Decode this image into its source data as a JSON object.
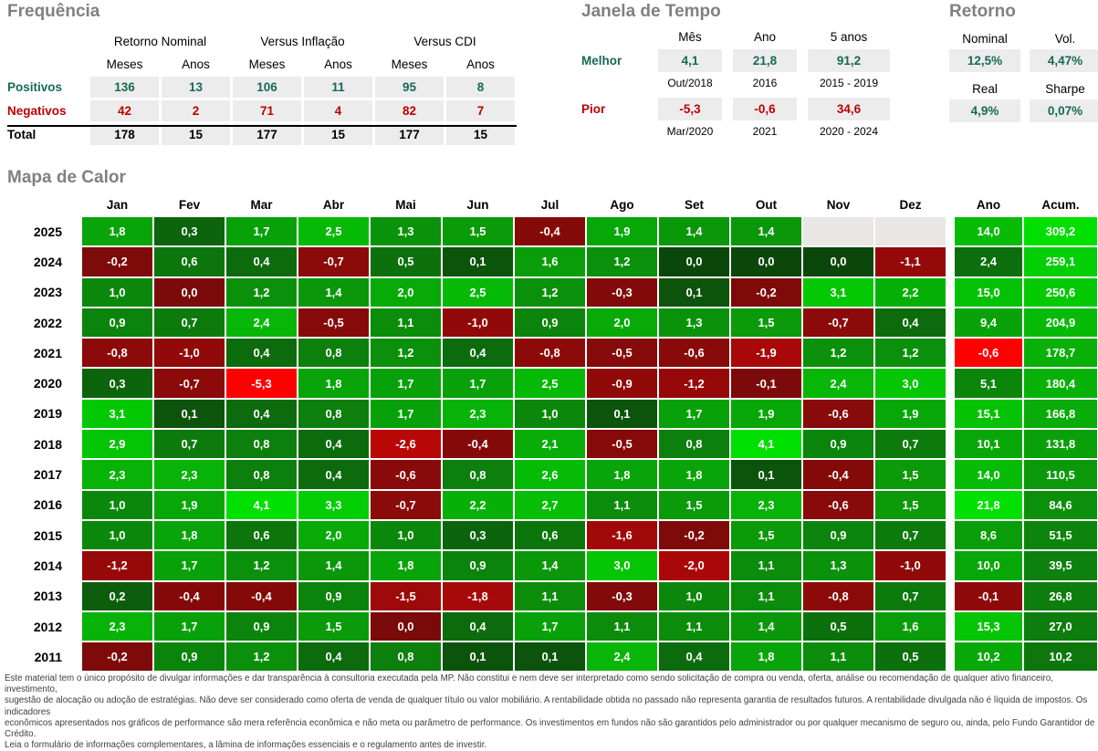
{
  "frequency": {
    "title": "Frequência",
    "group_headers": [
      "Retorno Nominal",
      "Versus Inflação",
      "Versus CDI"
    ],
    "sub_headers": [
      "Meses",
      "Anos",
      "Meses",
      "Anos",
      "Meses",
      "Anos"
    ],
    "rows": [
      {
        "label": "Positivos",
        "tone": "positive",
        "values": [
          "136",
          "13",
          "106",
          "11",
          "95",
          "8"
        ]
      },
      {
        "label": "Negativos",
        "tone": "negative",
        "values": [
          "42",
          "2",
          "71",
          "4",
          "82",
          "7"
        ]
      },
      {
        "label": "Total",
        "tone": "total",
        "values": [
          "178",
          "15",
          "177",
          "15",
          "177",
          "15"
        ]
      }
    ]
  },
  "time_window": {
    "title": "Janela de Tempo",
    "headers": [
      "Mês",
      "Ano",
      "5 anos"
    ],
    "rows": [
      {
        "label": "Melhor",
        "tone": "positive",
        "values": [
          "4,1",
          "21,8",
          "91,2"
        ],
        "periods": [
          "Out/2018",
          "2016",
          "2015 - 2019"
        ]
      },
      {
        "label": "Pior",
        "tone": "negative",
        "values": [
          "-5,3",
          "-0,6",
          "34,6"
        ],
        "periods": [
          "Mar/2020",
          "2021",
          "2020 - 2024"
        ]
      }
    ]
  },
  "returns": {
    "title": "Retorno",
    "pairs": [
      {
        "headers": [
          "Nominal",
          "Vol."
        ],
        "values": [
          "12,5%",
          "4,47%"
        ]
      },
      {
        "headers": [
          "Real",
          "Sharpe"
        ],
        "values": [
          "4,9%",
          "0,07%"
        ]
      }
    ]
  },
  "chart_data": {
    "type": "heatmap",
    "title": "Mapa de Calor",
    "x_labels": [
      "Jan",
      "Fev",
      "Mar",
      "Abr",
      "Mai",
      "Jun",
      "Jul",
      "Ago",
      "Set",
      "Out",
      "Nov",
      "Dez"
    ],
    "summary_labels": [
      "Ano",
      "Acum."
    ],
    "rows": [
      {
        "year": "2025",
        "months": [
          "1,8",
          "0,3",
          "1,7",
          "2,5",
          "1,3",
          "1,5",
          "-0,4",
          "1,9",
          "1,4",
          "1,4",
          null,
          null
        ],
        "ano": "14,0",
        "acum": "309,2"
      },
      {
        "year": "2024",
        "months": [
          "-0,2",
          "0,6",
          "0,4",
          "-0,7",
          "0,5",
          "0,1",
          "1,6",
          "1,2",
          "0,0",
          "0,0",
          "0,0",
          "-1,1"
        ],
        "ano": "2,4",
        "acum": "259,1"
      },
      {
        "year": "2023",
        "months": [
          "1,0",
          "0,0",
          "1,2",
          "1,4",
          "2,0",
          "2,5",
          "1,2",
          "-0,3",
          "0,1",
          "-0,2",
          "3,1",
          "2,2"
        ],
        "ano": "15,0",
        "acum": "250,6"
      },
      {
        "year": "2022",
        "months": [
          "0,9",
          "0,7",
          "2,4",
          "-0,5",
          "1,1",
          "-1,0",
          "0,9",
          "2,0",
          "1,3",
          "1,5",
          "-0,7",
          "0,4"
        ],
        "ano": "9,4",
        "acum": "204,9"
      },
      {
        "year": "2021",
        "months": [
          "-0,8",
          "-1,0",
          "0,4",
          "0,8",
          "1,2",
          "0,4",
          "-0,8",
          "-0,5",
          "-0,6",
          "-1,9",
          "1,2",
          "1,2"
        ],
        "ano": "-0,6",
        "acum": "178,7"
      },
      {
        "year": "2020",
        "months": [
          "0,3",
          "-0,7",
          "-5,3",
          "1,8",
          "1,7",
          "1,7",
          "2,5",
          "-0,9",
          "-1,2",
          "-0,1",
          "2,4",
          "3,0"
        ],
        "ano": "5,1",
        "acum": "180,4"
      },
      {
        "year": "2019",
        "months": [
          "3,1",
          "0,1",
          "0,4",
          "0,8",
          "1,7",
          "2,3",
          "1,0",
          "0,1",
          "1,7",
          "1,9",
          "-0,6",
          "1,9"
        ],
        "ano": "15,1",
        "acum": "166,8"
      },
      {
        "year": "2018",
        "months": [
          "2,9",
          "0,7",
          "0,8",
          "0,4",
          "-2,6",
          "-0,4",
          "2,1",
          "-0,5",
          "0,8",
          "4,1",
          "0,9",
          "0,7"
        ],
        "ano": "10,1",
        "acum": "131,8"
      },
      {
        "year": "2017",
        "months": [
          "2,3",
          "2,3",
          "0,8",
          "0,4",
          "-0,6",
          "0,8",
          "2,6",
          "1,8",
          "1,8",
          "0,1",
          "-0,4",
          "1,5"
        ],
        "ano": "14,0",
        "acum": "110,5"
      },
      {
        "year": "2016",
        "months": [
          "1,0",
          "1,9",
          "4,1",
          "3,3",
          "-0,7",
          "2,2",
          "2,7",
          "1,1",
          "1,5",
          "2,3",
          "-0,6",
          "1,5"
        ],
        "ano": "21,8",
        "acum": "84,6"
      },
      {
        "year": "2015",
        "months": [
          "1,0",
          "1,8",
          "0,6",
          "2,0",
          "1,0",
          "0,3",
          "0,6",
          "-1,6",
          "-0,2",
          "1,5",
          "0,9",
          "0,7"
        ],
        "ano": "8,6",
        "acum": "51,5"
      },
      {
        "year": "2014",
        "months": [
          "-1,2",
          "1,7",
          "1,2",
          "1,4",
          "1,8",
          "0,9",
          "1,4",
          "3,0",
          "-2,0",
          "1,1",
          "1,3",
          "-1,0"
        ],
        "ano": "10,0",
        "acum": "39,5"
      },
      {
        "year": "2013",
        "months": [
          "0,2",
          "-0,4",
          "-0,4",
          "0,9",
          "-1,5",
          "-1,8",
          "1,1",
          "-0,3",
          "1,0",
          "1,1",
          "-0,8",
          "0,7"
        ],
        "ano": "-0,1",
        "acum": "26,8"
      },
      {
        "year": "2012",
        "months": [
          "2,3",
          "1,7",
          "0,9",
          "1,5",
          "0,0",
          "0,4",
          "1,7",
          "1,1",
          "1,1",
          "1,4",
          "0,5",
          "1,6"
        ],
        "ano": "15,3",
        "acum": "27,0"
      },
      {
        "year": "2011",
        "months": [
          "-0,2",
          "0,9",
          "1,2",
          "0,4",
          "0,8",
          "0,1",
          "0,1",
          "2,4",
          "0,4",
          "1,8",
          "1,1",
          "0,5"
        ],
        "ano": "10,2",
        "acum": "10,2"
      }
    ],
    "negative_zero_cells": [
      {
        "year": "2023",
        "month": "Fev"
      },
      {
        "year": "2012",
        "month": "Mai"
      }
    ],
    "scale": {
      "month_max": 4.1,
      "month_min": -5.3,
      "year_max": 21.8,
      "year_min": -0.6,
      "accum_max": 309.2,
      "accum_min": 10.2
    },
    "legend_position": "none",
    "grid": false
  },
  "disclaimer": {
    "lines": [
      "Este material tem o único propósito de divulgar informações e dar transparência à consultoria executada pela MP. Não constitui e nem deve ser interpretado como sendo solicitação de compra ou venda, oferta, análise ou recomendação de qualquer ativo financeiro, investimento,",
      "sugestão de alocação ou adoção de estratégias. Não deve ser considerado como oferta de venda de qualquer título ou valor mobiliário. A rentabilidade obtida no passado não representa garantia de resultados futuros. A rentabilidade divulgada não é líquida de impostos. Os indicadores",
      "econômicos apresentados nos gráficos de performance são mera referência econômica e não meta ou parâmetro de performance. Os investimentos em fundos não são garantidos pelo administrador ou por qualquer mecanismo de seguro ou, ainda, pelo Fundo Garantidor de Crédito.",
      "Leia o formulário de informações complementares, a lâmina de informações essenciais e o regulamento antes de investir."
    ]
  },
  "colors": {
    "title_gray": "#808080",
    "positive_green": "#176956",
    "negative_red": "#C00000",
    "cell_gray": "#ECECEC",
    "empty_cell": "#E9E6E3",
    "heatmap_best_green": "#00E000",
    "heatmap_worst_red": "#FF0000"
  }
}
